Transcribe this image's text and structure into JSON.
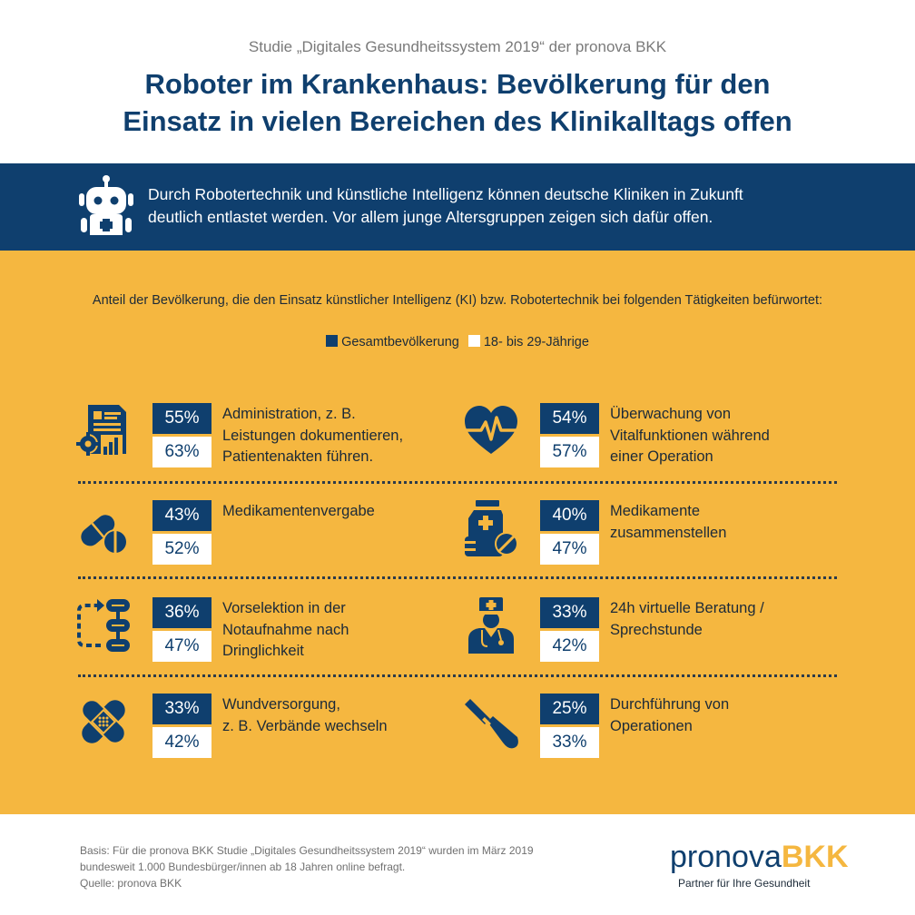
{
  "header": {
    "study": "Studie „Digitales Gesundheitssystem 2019“ der pronova BKK",
    "title_line1": "Roboter im Krankenhaus: Bevölkerung für den",
    "title_line2": "Einsatz in vielen Bereichen des Klinikalltags offen"
  },
  "intro": {
    "line1": "Durch Robotertechnik und künstliche Intelligenz können deutsche Kliniken in Zukunft",
    "line2": "deutlich entlastet werden. Vor allem junge Altersgruppen zeigen sich dafür offen."
  },
  "chart_data": {
    "type": "table",
    "title": "Anteil der Bevölkerung, die den Einsatz künstlicher Intelligenz (KI) bzw. Robotertechnik bei folgenden Tätigkeiten befürwortet:",
    "unit": "%",
    "legend": [
      "Gesamtbevölkerung",
      "18- bis 29-Jährige"
    ],
    "series": [
      {
        "name": "Gesamtbevölkerung",
        "color": "#0f3f6e",
        "values": [
          55,
          54,
          43,
          40,
          36,
          33,
          33,
          25
        ]
      },
      {
        "name": "18- bis 29-Jährige",
        "color": "#ffffff",
        "values": [
          63,
          57,
          52,
          47,
          47,
          42,
          42,
          33
        ]
      }
    ],
    "categories": [
      {
        "icon": "document-gear-chart-icon",
        "lines": [
          "Administration, z. B.",
          "Leistungen dokumentieren,",
          "Patientenakten führen."
        ],
        "total": "55%",
        "young": "63%"
      },
      {
        "icon": "heart-pulse-icon",
        "lines": [
          "Überwachung von",
          "Vitalfunktionen während",
          "einer Operation"
        ],
        "total": "54%",
        "young": "57%"
      },
      {
        "icon": "pills-icon",
        "lines": [
          "Medikamentenvergabe"
        ],
        "total": "43%",
        "young": "52%"
      },
      {
        "icon": "medicine-bottles-icon",
        "lines": [
          "Medikamente",
          "zusammenstellen"
        ],
        "total": "40%",
        "young": "47%"
      },
      {
        "icon": "flowchart-icon",
        "lines": [
          "Vorselektion in der",
          "Notaufnahme nach",
          "Dringlichkeit"
        ],
        "total": "36%",
        "young": "47%"
      },
      {
        "icon": "doctor-icon",
        "lines": [
          "24h virtuelle Beratung /",
          "Sprechstunde"
        ],
        "total": "33%",
        "young": "42%"
      },
      {
        "icon": "bandage-icon",
        "lines": [
          "Wundversorgung,",
          "z. B. Verbände wechseln"
        ],
        "total": "33%",
        "young": "42%"
      },
      {
        "icon": "scalpel-icon",
        "lines": [
          "Durchführung von",
          "Operationen"
        ],
        "total": "25%",
        "young": "33%"
      }
    ]
  },
  "footer": {
    "basis_line1": "Basis: Für die pronova BKK Studie „Digitales Gesundheitssystem 2019“ wurden im März 2019",
    "basis_line2": "bundesweit 1.000 Bundesbürger/innen ab 18 Jahren online befragt.",
    "source": "Quelle: pronova BKK",
    "logo_part1": "pronova",
    "logo_part2": "BKK",
    "tagline": "Partner für Ihre Gesundheit"
  },
  "colors": {
    "navy": "#0f3f6e",
    "yellow": "#f5b740",
    "white": "#ffffff"
  },
  "robot_icon": "robot-icon"
}
